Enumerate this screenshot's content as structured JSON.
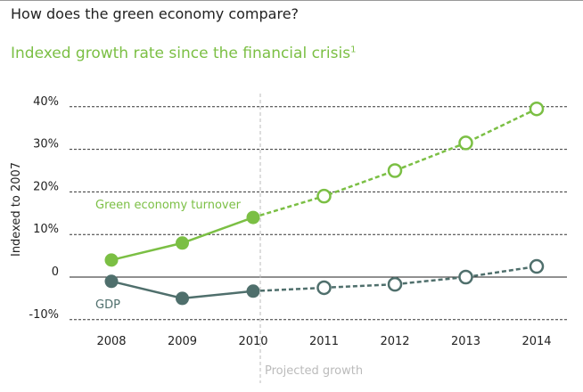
{
  "title": "How does the green economy compare?",
  "subtitle": "Indexed growth rate since the financial crisis",
  "subtitle_footnote": "1",
  "chart_data": {
    "type": "line",
    "ylabel": "Indexed to 2007",
    "ylim": [
      -10,
      40
    ],
    "yticks": [
      {
        "v": 40,
        "label": "40%"
      },
      {
        "v": 30,
        "label": "30%"
      },
      {
        "v": 20,
        "label": "20%"
      },
      {
        "v": 10,
        "label": "10%"
      },
      {
        "v": 0,
        "label": "0"
      },
      {
        "v": -10,
        "label": "-10%"
      }
    ],
    "categories": [
      "2008",
      "2009",
      "2010",
      "2011",
      "2012",
      "2013",
      "2014"
    ],
    "projection_start": "2010",
    "projection_label": "Projected growth",
    "grid": true,
    "series": [
      {
        "name": "Green economy turnover",
        "color": "#7bbf44",
        "values": [
          4,
          8,
          14,
          19,
          25,
          31.5,
          39.5
        ]
      },
      {
        "name": "GDP",
        "color": "#4f6f6c",
        "values": [
          -1,
          -5,
          -3.3,
          -2.5,
          -1.7,
          0,
          2.5
        ]
      }
    ]
  }
}
